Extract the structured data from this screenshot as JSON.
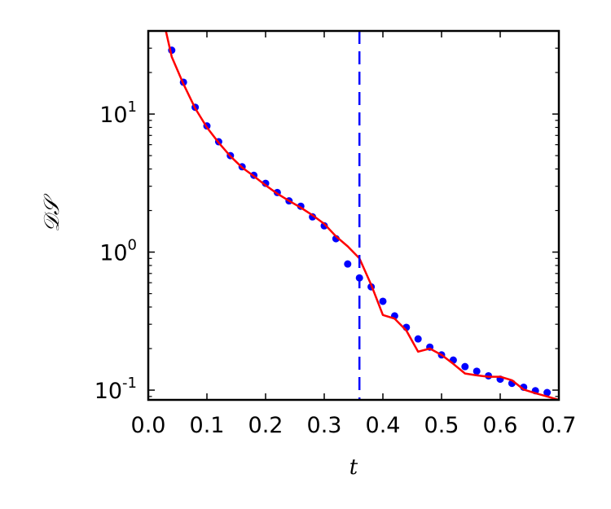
{
  "chart_data": {
    "type": "line",
    "xlabel": "t",
    "ylabel": "𝒟𝒮",
    "xlim": [
      0.0,
      0.7
    ],
    "ylim": [
      0.085,
      40
    ],
    "yscale": "log",
    "grid": false,
    "x_ticks": [
      "0.0",
      "0.1",
      "0.2",
      "0.3",
      "0.4",
      "0.5",
      "0.6",
      "0.7"
    ],
    "y_ticks": [
      {
        "base": "10",
        "exp": "-1",
        "value": 0.1
      },
      {
        "base": "10",
        "exp": "0",
        "value": 1
      },
      {
        "base": "10",
        "exp": "1",
        "value": 10
      }
    ],
    "vline": {
      "x": 0.36,
      "color": "#0000ff",
      "style": "dashed"
    },
    "series": [
      {
        "style": "markers",
        "color": "#0000ff",
        "x": [
          0.04,
          0.06,
          0.08,
          0.1,
          0.12,
          0.14,
          0.16,
          0.18,
          0.2,
          0.22,
          0.24,
          0.26,
          0.28,
          0.3,
          0.32,
          0.34,
          0.36,
          0.38,
          0.4,
          0.42,
          0.44,
          0.46,
          0.48,
          0.5,
          0.52,
          0.54,
          0.56,
          0.58,
          0.6,
          0.62,
          0.64,
          0.66,
          0.68
        ],
        "y": [
          29.0,
          17.0,
          11.2,
          8.2,
          6.3,
          5.0,
          4.15,
          3.6,
          3.15,
          2.7,
          2.35,
          2.15,
          1.8,
          1.55,
          1.25,
          0.82,
          0.65,
          0.56,
          0.44,
          0.345,
          0.285,
          0.235,
          0.205,
          0.18,
          0.165,
          0.148,
          0.137,
          0.127,
          0.12,
          0.112,
          0.105,
          0.099,
          0.096
        ]
      },
      {
        "style": "line",
        "color": "#ff0000",
        "x": [
          0.03,
          0.04,
          0.06,
          0.08,
          0.1,
          0.12,
          0.14,
          0.16,
          0.18,
          0.2,
          0.22,
          0.24,
          0.26,
          0.28,
          0.3,
          0.32,
          0.34,
          0.36,
          0.38,
          0.4,
          0.42,
          0.44,
          0.46,
          0.48,
          0.5,
          0.52,
          0.54,
          0.56,
          0.58,
          0.6,
          0.62,
          0.64,
          0.66,
          0.68,
          0.7
        ],
        "y": [
          40,
          26,
          16.5,
          11.0,
          8.0,
          6.2,
          4.95,
          4.1,
          3.55,
          3.05,
          2.65,
          2.35,
          2.1,
          1.85,
          1.6,
          1.3,
          1.1,
          0.9,
          0.58,
          0.35,
          0.33,
          0.27,
          0.19,
          0.2,
          0.18,
          0.155,
          0.132,
          0.128,
          0.125,
          0.125,
          0.118,
          0.101,
          0.095,
          0.09,
          0.085
        ]
      }
    ]
  }
}
